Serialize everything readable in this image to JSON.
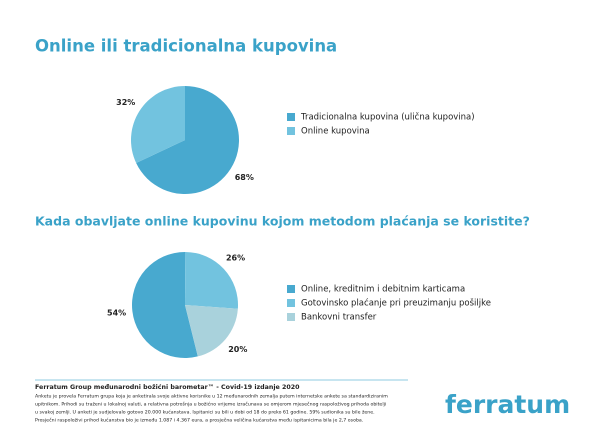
{
  "chart_data": [
    {
      "type": "pie",
      "title": "Online ili tradicionalna kupovina",
      "categories": [
        "Tradicionalna kupovina (ulična kupovina)",
        "Online kupovina"
      ],
      "values": [
        68,
        32
      ],
      "value_labels": [
        "68%",
        "32%"
      ],
      "colors": [
        "#48a9cf",
        "#72c3df"
      ],
      "startangle": 0
    },
    {
      "type": "pie",
      "title": "Kada obavljate online kupovinu kojom metodom plaćanja se koristite?",
      "categories": [
        "Online, kreditnim i debitnim karticama",
        "Gotovinsko plaćanje pri preuzimanju pošiljke",
        "Bankovni transfer"
      ],
      "values": [
        54,
        26,
        20
      ],
      "value_labels": [
        "54%",
        "26%",
        "20%"
      ],
      "colors": [
        "#48a9cf",
        "#72c3df",
        "#a9d2dc"
      ],
      "startangle": 166
    }
  ],
  "footer": {
    "title": "Ferratum Group međunarodni božićni barometar™ - Covid-19 izdanje 2020",
    "lines": [
      "Anketu je provela Ferratum grupa koja je anketirala svoje aktivne korisnike u 12 međunarodnih zemalja putem internetske ankete sa standardiziranim",
      "upitnikom. Prihodi su traženi u lokalnoj valuti, a relativna potrošnja u božićno vrijeme izračunava se omjerom mjesečnog raspoloživog prihoda obitelji",
      "u svakoj zemlji. U anketi je sudjelovalo gotovo 20.000 kućanstava. Ispitanici su bili u dobi od 18 do preko 61 godine. 59% sudionika su bile žene.",
      "Prosječni raspoloživi prihod kućanstva bio je između 1.087 i 4.367 eura, a prosječna veličina kućanstva među ispitanicima bila je 2,7 osoba."
    ]
  },
  "logo": "ferratum"
}
